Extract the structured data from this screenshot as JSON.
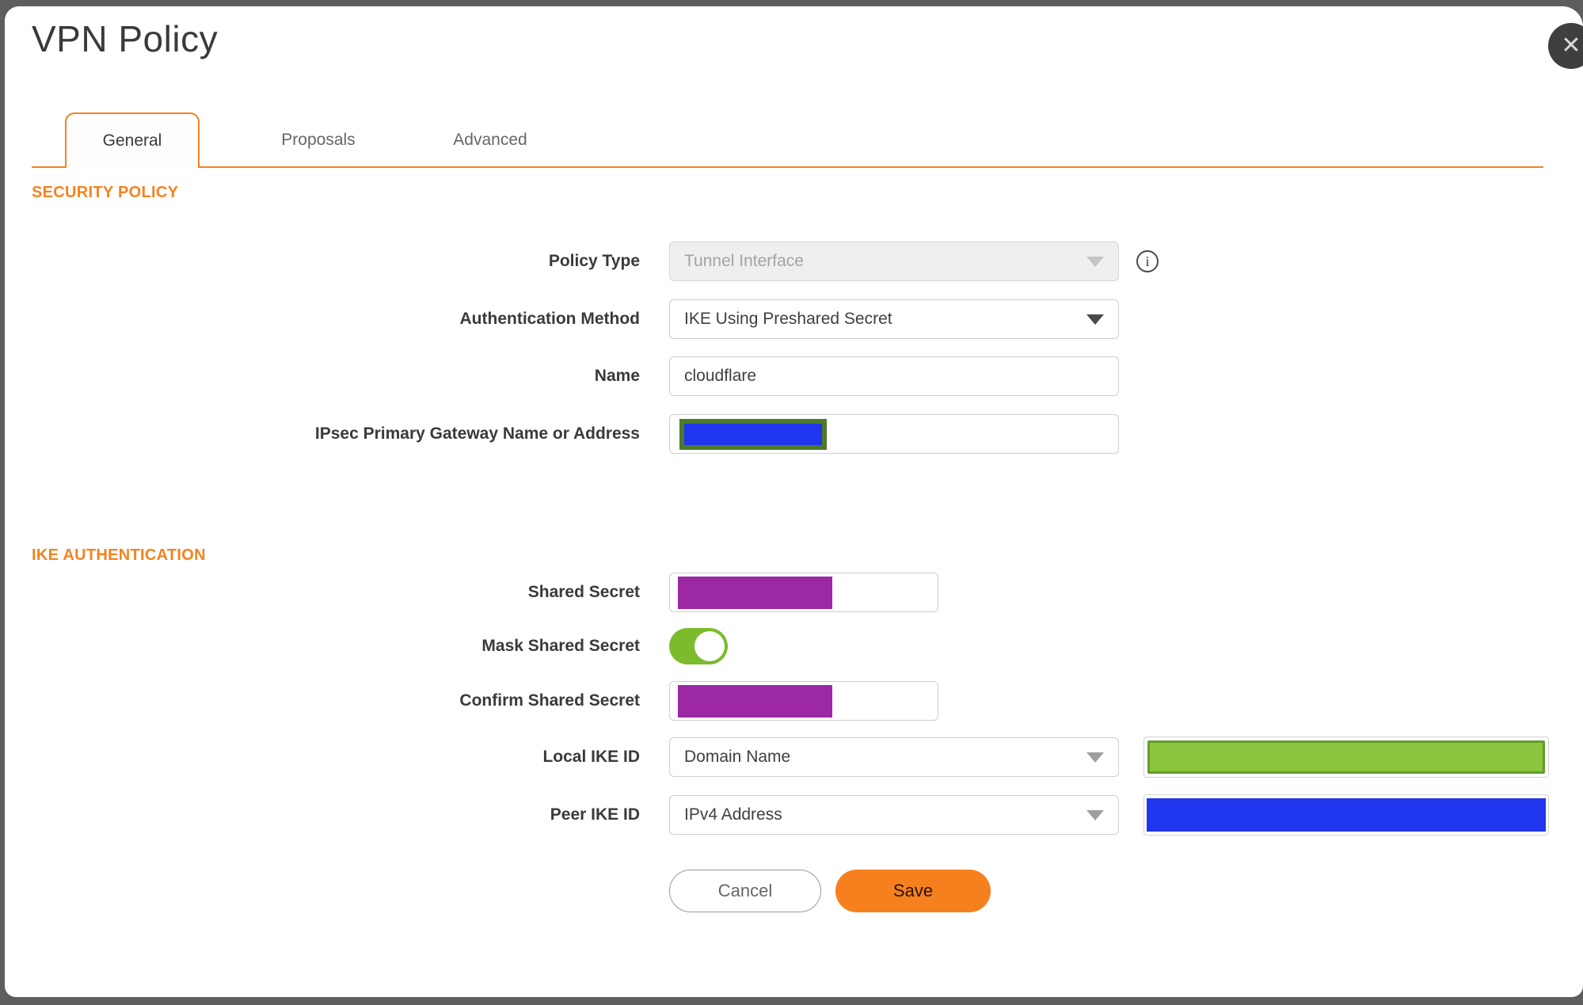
{
  "window": {
    "title": "VPN Policy",
    "close_icon": "✕"
  },
  "tabs": [
    {
      "label": "General",
      "active": true
    },
    {
      "label": "Proposals",
      "active": false
    },
    {
      "label": "Advanced",
      "active": false
    }
  ],
  "sections": {
    "security_policy": {
      "heading": "SECURITY POLICY"
    },
    "ike_authentication": {
      "heading": "IKE AUTHENTICATION"
    }
  },
  "fields": {
    "policy_type": {
      "label": "Policy Type",
      "value": "Tunnel Interface",
      "disabled": true,
      "info_icon": "i"
    },
    "authentication_method": {
      "label": "Authentication Method",
      "value": "IKE Using Preshared Secret"
    },
    "name": {
      "label": "Name",
      "value": "cloudflare"
    },
    "ipsec_primary_gateway": {
      "label": "IPsec Primary Gateway Name or Address",
      "value_redacted": true
    },
    "shared_secret": {
      "label": "Shared Secret",
      "value_redacted": true
    },
    "mask_shared_secret": {
      "label": "Mask Shared Secret",
      "state": "on"
    },
    "confirm_shared_secret": {
      "label": "Confirm Shared Secret",
      "value_redacted": true
    },
    "local_ike_id": {
      "label": "Local IKE ID",
      "value": "Domain Name",
      "id_value_redacted": true
    },
    "peer_ike_id": {
      "label": "Peer IKE ID",
      "value": "IPv4 Address",
      "id_value_redacted": true
    }
  },
  "buttons": {
    "cancel": "Cancel",
    "save": "Save"
  },
  "colors": {
    "accent_orange": "#F5821F",
    "save_orange": "#F7801E",
    "redaction_purple": "#9C28A4",
    "redaction_blue": "#1F35EE",
    "redaction_green_fill": "#8CC63F",
    "redaction_green_border": "#649C2F",
    "gateway_redaction_border": "#4C7A28",
    "toggle_on_green": "#7CBB2D",
    "backdrop_gray": "#5E5E5E"
  }
}
